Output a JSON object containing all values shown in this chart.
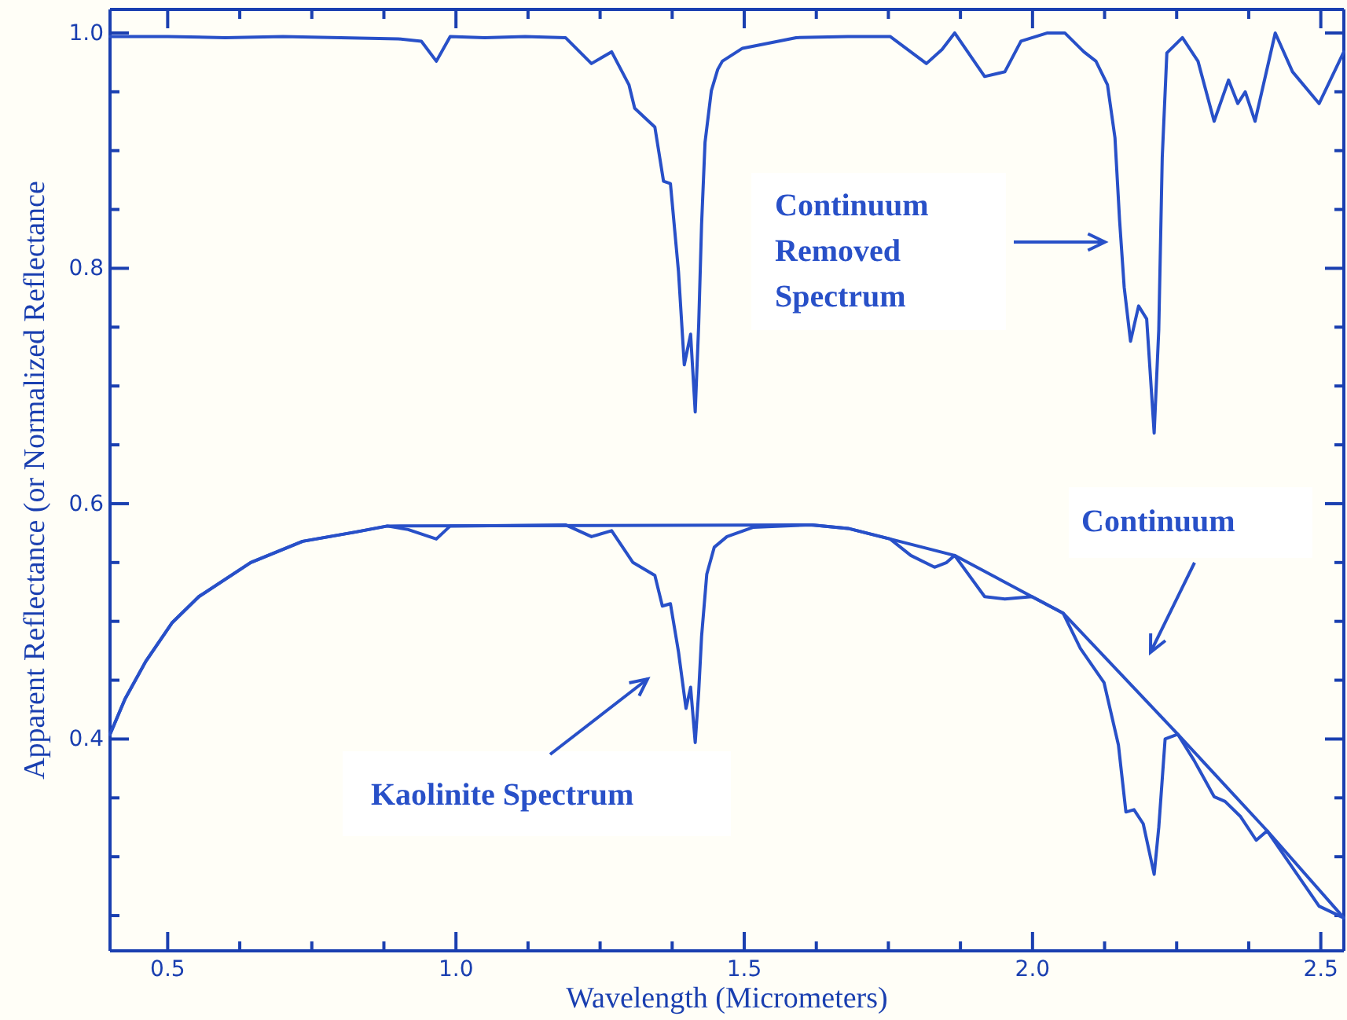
{
  "chart_data": {
    "type": "line",
    "xlabel": "Wavelength (Micrometers)",
    "ylabel": "Apparent Reflectance (or Normalized Reflectance",
    "xlim": [
      0.4,
      2.54
    ],
    "ylim": [
      0.22,
      1.02
    ],
    "xticks": [
      0.5,
      {
        "value": 0.625,
        "label": null
      },
      {
        "value": 0.75,
        "label": null
      },
      {
        "value": 0.875,
        "label": null
      },
      {
        "value": 1,
        "label": "1.0"
      },
      {
        "value": 1.125,
        "label": null
      },
      {
        "value": 1.25,
        "label": null
      },
      {
        "value": 1.375,
        "label": null
      },
      1.5,
      {
        "value": 1.625,
        "label": null
      },
      {
        "value": 1.75,
        "label": null
      },
      {
        "value": 1.875,
        "label": null
      },
      {
        "value": 2,
        "label": "2.0"
      },
      {
        "value": 2.125,
        "label": null
      },
      {
        "value": 2.25,
        "label": null
      },
      {
        "value": 2.375,
        "label": null
      },
      2.5
    ],
    "yticks": [
      {
        "value": 0.25,
        "label": null
      },
      {
        "value": 0.3,
        "label": null
      },
      {
        "value": 0.35,
        "label": null
      },
      0.4,
      {
        "value": 0.45,
        "label": null
      },
      {
        "value": 0.5,
        "label": null
      },
      {
        "value": 0.55,
        "label": null
      },
      0.6,
      {
        "value": 0.65,
        "label": null
      },
      {
        "value": 0.7,
        "label": null
      },
      {
        "value": 0.75,
        "label": null
      },
      0.8,
      {
        "value": 0.85,
        "label": null
      },
      {
        "value": 0.9,
        "label": null
      },
      {
        "value": 0.95,
        "label": null
      },
      {
        "value": 1,
        "label": "1.0"
      }
    ],
    "line_style": "solid",
    "marker": "none",
    "series": [
      {
        "name": "Continuum Removed Spectrum",
        "color": "#2850c8",
        "x": [
          0.4,
          0.5,
          0.6,
          0.7,
          0.8,
          0.9,
          0.94,
          0.966,
          0.99,
          1.05,
          1.12,
          1.19,
          1.235,
          1.27,
          1.3,
          1.31,
          1.345,
          1.36,
          1.372,
          1.386,
          1.396,
          1.407,
          1.415,
          1.421,
          1.426,
          1.432,
          1.443,
          1.454,
          1.462,
          1.497,
          1.59,
          1.68,
          1.753,
          1.816,
          1.843,
          1.865,
          1.917,
          1.952,
          1.98,
          2.026,
          2.056,
          2.089,
          2.11,
          2.13,
          2.143,
          2.151,
          2.159,
          2.17,
          2.184,
          2.198,
          2.211,
          2.219,
          2.225,
          2.233,
          2.26,
          2.287,
          2.315,
          2.34,
          2.356,
          2.369,
          2.386,
          2.421,
          2.451,
          2.497,
          2.54
        ],
        "values": [
          0.997,
          0.997,
          0.996,
          0.997,
          0.996,
          0.995,
          0.993,
          0.976,
          0.997,
          0.996,
          0.997,
          0.996,
          0.974,
          0.984,
          0.956,
          0.936,
          0.92,
          0.874,
          0.872,
          0.797,
          0.718,
          0.744,
          0.678,
          0.752,
          0.837,
          0.907,
          0.951,
          0.969,
          0.976,
          0.987,
          0.996,
          0.997,
          0.997,
          0.974,
          0.986,
          1.0,
          0.963,
          0.967,
          0.993,
          1.0,
          1.0,
          0.984,
          0.976,
          0.956,
          0.911,
          0.841,
          0.784,
          0.738,
          0.768,
          0.757,
          0.66,
          0.748,
          0.894,
          0.983,
          0.996,
          0.976,
          0.925,
          0.96,
          0.94,
          0.95,
          0.925,
          1.0,
          0.967,
          0.94,
          0.984
        ]
      },
      {
        "name": "Kaolinite Spectrum",
        "color": "#2850c8",
        "x": [
          0.4,
          0.426,
          0.462,
          0.508,
          0.554,
          0.644,
          0.734,
          0.827,
          0.881,
          0.917,
          0.966,
          0.99,
          1.19,
          1.235,
          1.27,
          1.307,
          1.345,
          1.358,
          1.372,
          1.386,
          1.399,
          1.407,
          1.415,
          1.421,
          1.426,
          1.435,
          1.448,
          1.47,
          1.516,
          1.617,
          1.68,
          1.753,
          1.789,
          1.83,
          1.851,
          1.865,
          1.917,
          1.952,
          1.999,
          2.053,
          2.083,
          2.124,
          2.149,
          2.162,
          2.176,
          2.192,
          2.211,
          2.219,
          2.23,
          2.252,
          2.28,
          2.315,
          2.334,
          2.361,
          2.388,
          2.407,
          2.435,
          2.497,
          2.54
        ],
        "values": [
          0.404,
          0.434,
          0.466,
          0.499,
          0.521,
          0.55,
          0.568,
          0.576,
          0.581,
          0.578,
          0.57,
          0.581,
          0.582,
          0.572,
          0.577,
          0.55,
          0.539,
          0.513,
          0.515,
          0.474,
          0.426,
          0.444,
          0.397,
          0.44,
          0.487,
          0.54,
          0.563,
          0.572,
          0.58,
          0.582,
          0.579,
          0.57,
          0.556,
          0.546,
          0.55,
          0.556,
          0.521,
          0.519,
          0.521,
          0.507,
          0.477,
          0.448,
          0.395,
          0.338,
          0.34,
          0.328,
          0.285,
          0.325,
          0.4,
          0.404,
          0.382,
          0.351,
          0.347,
          0.334,
          0.314,
          0.322,
          0.302,
          0.258,
          0.248
        ]
      },
      {
        "name": "Continuum",
        "color": "#2850c8",
        "x": [
          0.4,
          0.426,
          0.462,
          0.508,
          0.554,
          0.644,
          0.734,
          0.827,
          0.881,
          1.617,
          1.68,
          1.753,
          1.865,
          1.999,
          2.053,
          2.252,
          2.407,
          2.54
        ],
        "values": [
          0.404,
          0.434,
          0.466,
          0.499,
          0.521,
          0.55,
          0.568,
          0.576,
          0.581,
          0.582,
          0.579,
          0.57,
          0.556,
          0.521,
          0.507,
          0.404,
          0.322,
          0.248
        ]
      }
    ]
  }
}
